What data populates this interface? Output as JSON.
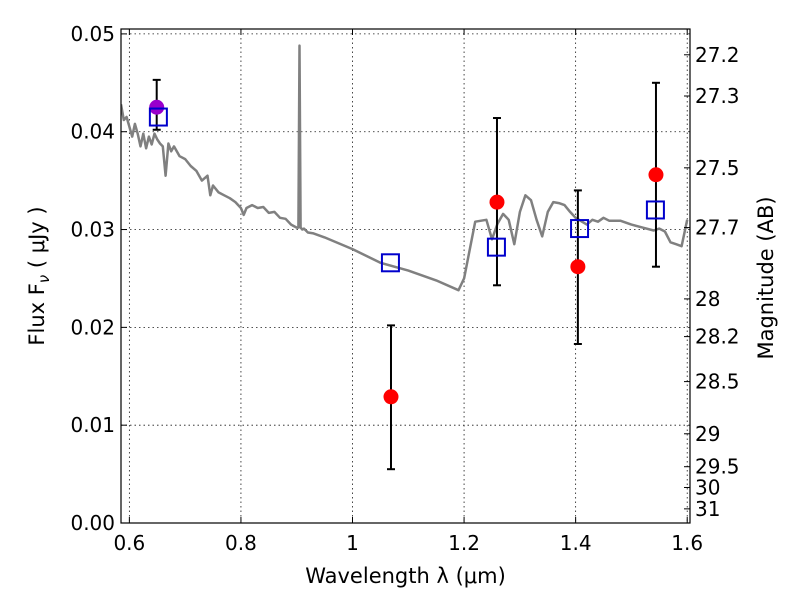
{
  "chart_data": {
    "type": "scatter",
    "xlabel": "Wavelength  λ (μm)",
    "ylabel": "Flux  F",
    "ylabel_sub": "ν",
    "ylabel_unit": " ( μJy )",
    "y2label": "Magnitude (AB)",
    "xlim": [
      0.585,
      1.605
    ],
    "ylim": [
      0.0,
      0.0505
    ],
    "grid": true,
    "x_ticks": [
      {
        "value": 0.6,
        "label": "0.6"
      },
      {
        "value": 0.8,
        "label": "0.8"
      },
      {
        "value": 1.0,
        "label": "1"
      },
      {
        "value": 1.2,
        "label": "1.2"
      },
      {
        "value": 1.4,
        "label": "1.4"
      },
      {
        "value": 1.6,
        "label": "1.6"
      }
    ],
    "y_ticks": [
      {
        "value": 0.0,
        "label": "0.00"
      },
      {
        "value": 0.01,
        "label": "0.01"
      },
      {
        "value": 0.02,
        "label": "0.02"
      },
      {
        "value": 0.03,
        "label": "0.03"
      },
      {
        "value": 0.04,
        "label": "0.04"
      },
      {
        "value": 0.05,
        "label": "0.05"
      }
    ],
    "y2_ticks": [
      {
        "label": "27.2"
      },
      {
        "label": "27.3"
      },
      {
        "label": "27.5"
      },
      {
        "label": "27.7"
      },
      {
        "label": "28"
      },
      {
        "label": "28.2"
      },
      {
        "label": "28.5"
      },
      {
        "label": "29"
      },
      {
        "label": "29.5"
      },
      {
        "label": "30"
      },
      {
        "label": "31"
      }
    ],
    "colors": {
      "model": "#808080",
      "observed": "#ff0000",
      "observed_highlight": "#9900cc",
      "model_band": "#0000cc",
      "errorbar": "#000000"
    },
    "model_spectrum": {
      "name": "",
      "x": [
        0.585,
        0.59,
        0.595,
        0.6,
        0.605,
        0.61,
        0.615,
        0.62,
        0.625,
        0.63,
        0.635,
        0.64,
        0.645,
        0.65,
        0.655,
        0.66,
        0.665,
        0.67,
        0.675,
        0.68,
        0.69,
        0.7,
        0.71,
        0.72,
        0.73,
        0.74,
        0.745,
        0.75,
        0.76,
        0.77,
        0.78,
        0.79,
        0.8,
        0.805,
        0.81,
        0.82,
        0.83,
        0.84,
        0.85,
        0.86,
        0.87,
        0.88,
        0.89,
        0.9,
        0.903,
        0.905,
        0.907,
        0.91,
        0.913,
        0.92,
        0.93,
        0.95,
        1.0,
        1.05,
        1.1,
        1.15,
        1.19,
        1.2,
        1.22,
        1.24,
        1.25,
        1.26,
        1.27,
        1.28,
        1.29,
        1.3,
        1.31,
        1.32,
        1.33,
        1.34,
        1.35,
        1.36,
        1.37,
        1.38,
        1.39,
        1.4,
        1.42,
        1.43,
        1.44,
        1.45,
        1.46,
        1.48,
        1.5,
        1.52,
        1.54,
        1.55,
        1.56,
        1.57,
        1.58,
        1.59,
        1.6
      ],
      "y": [
        0.0428,
        0.0412,
        0.0415,
        0.0405,
        0.0395,
        0.0408,
        0.0398,
        0.0385,
        0.0398,
        0.0383,
        0.0395,
        0.0387,
        0.0398,
        0.0392,
        0.0388,
        0.0385,
        0.0355,
        0.0388,
        0.038,
        0.0385,
        0.0375,
        0.0372,
        0.0365,
        0.036,
        0.035,
        0.0355,
        0.0335,
        0.0345,
        0.0338,
        0.0335,
        0.0332,
        0.0328,
        0.0322,
        0.0315,
        0.0322,
        0.0325,
        0.0322,
        0.0323,
        0.0317,
        0.0318,
        0.0312,
        0.0311,
        0.0305,
        0.0302,
        0.0302,
        0.0488,
        0.0302,
        0.03,
        0.0301,
        0.0297,
        0.0296,
        0.0292,
        0.028,
        0.0266,
        0.0258,
        0.0248,
        0.0238,
        0.025,
        0.0308,
        0.031,
        0.029,
        0.0306,
        0.0316,
        0.031,
        0.0285,
        0.0318,
        0.0335,
        0.033,
        0.031,
        0.0293,
        0.0318,
        0.0328,
        0.0327,
        0.0325,
        0.0318,
        0.0312,
        0.0305,
        0.031,
        0.0308,
        0.0312,
        0.0309,
        0.0309,
        0.0305,
        0.0302,
        0.0299,
        0.0301,
        0.0298,
        0.0287,
        0.0285,
        0.0283,
        0.031
      ]
    },
    "observed": {
      "name": "",
      "points": [
        {
          "x": 0.649,
          "y": 0.0425,
          "err_low": 0.0023,
          "err_high": 0.0028,
          "highlight": true
        },
        {
          "x": 1.069,
          "y": 0.0129,
          "err_low": 0.0074,
          "err_high": 0.0073,
          "highlight": false
        },
        {
          "x": 1.259,
          "y": 0.0328,
          "err_low": 0.0085,
          "err_high": 0.0086,
          "highlight": false
        },
        {
          "x": 1.404,
          "y": 0.0262,
          "err_low": 0.0079,
          "err_high": 0.0078,
          "highlight": false
        },
        {
          "x": 1.544,
          "y": 0.0356,
          "err_low": 0.0094,
          "err_high": 0.0094,
          "highlight": false
        }
      ]
    },
    "model_band": {
      "name": "",
      "points": [
        {
          "x": 0.652,
          "y": 0.0415
        },
        {
          "x": 1.068,
          "y": 0.0266
        },
        {
          "x": 1.258,
          "y": 0.0282
        },
        {
          "x": 1.407,
          "y": 0.0301
        },
        {
          "x": 1.543,
          "y": 0.032
        }
      ]
    }
  }
}
